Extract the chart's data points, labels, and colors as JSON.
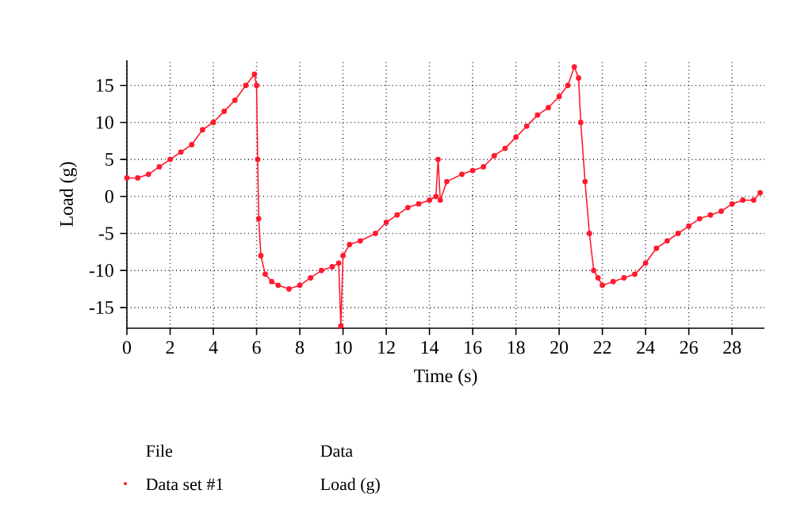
{
  "chart_data": {
    "type": "line",
    "xlabel": "Time (s)",
    "ylabel": "Load (g)",
    "legend_title": "File",
    "annotations": [
      "Data",
      "Load (g)"
    ],
    "xlim": [
      0,
      29.5
    ],
    "xticks": [
      0,
      2,
      4,
      6,
      8,
      10,
      12,
      14,
      16,
      18,
      20,
      22,
      24,
      26,
      28
    ],
    "ylim": [
      -17.8,
      18.4
    ],
    "yticks": [
      -15,
      -10,
      -5,
      0,
      5,
      10,
      15
    ],
    "grid": true,
    "legend": "bottom",
    "marker": "circle",
    "line_style": "solid",
    "series": [
      {
        "name": "Data set #1",
        "color": "#ff1a2e",
        "x": [
          0,
          0.5,
          1,
          1.5,
          2,
          2.5,
          3,
          3.5,
          4,
          4.5,
          5,
          5.5,
          5.9,
          6.0,
          6.05,
          6.1,
          6.2,
          6.4,
          6.7,
          7,
          7.5,
          8,
          8.5,
          9,
          9.5,
          9.8,
          9.9,
          10,
          10.3,
          10.8,
          11.5,
          12,
          12.5,
          13,
          13.5,
          14,
          14.3,
          14.4,
          14.5,
          14.8,
          15.5,
          16,
          16.5,
          17,
          17.5,
          18,
          18.5,
          19,
          19.5,
          20,
          20.4,
          20.7,
          20.9,
          21.0,
          21.2,
          21.4,
          21.6,
          21.8,
          22,
          22.5,
          23,
          23.5,
          24,
          24.5,
          25,
          25.5,
          26,
          26.5,
          27,
          27.5,
          28,
          28.5,
          29,
          29.3
        ],
        "values": [
          2.5,
          2.5,
          3,
          4,
          5,
          6,
          7,
          9,
          10,
          11.5,
          13,
          15,
          16.5,
          15,
          5,
          -3,
          -8,
          -10.5,
          -11.5,
          -12,
          -12.5,
          -12,
          -11,
          -10,
          -9.5,
          -9,
          -17.5,
          -8,
          -6.5,
          -6,
          -5,
          -3.5,
          -2.5,
          -1.5,
          -1,
          -0.5,
          0,
          5,
          -0.5,
          2,
          3,
          3.5,
          4,
          5.5,
          6.5,
          8,
          9.5,
          11,
          12,
          13.5,
          15,
          17.5,
          16,
          10,
          2,
          -5,
          -10,
          -11,
          -12,
          -11.5,
          -11,
          -10.5,
          -9,
          -7,
          -6,
          -5,
          -4,
          -3,
          -2.5,
          -2,
          -1,
          -0.5,
          -0.5,
          0.5
        ]
      }
    ]
  }
}
